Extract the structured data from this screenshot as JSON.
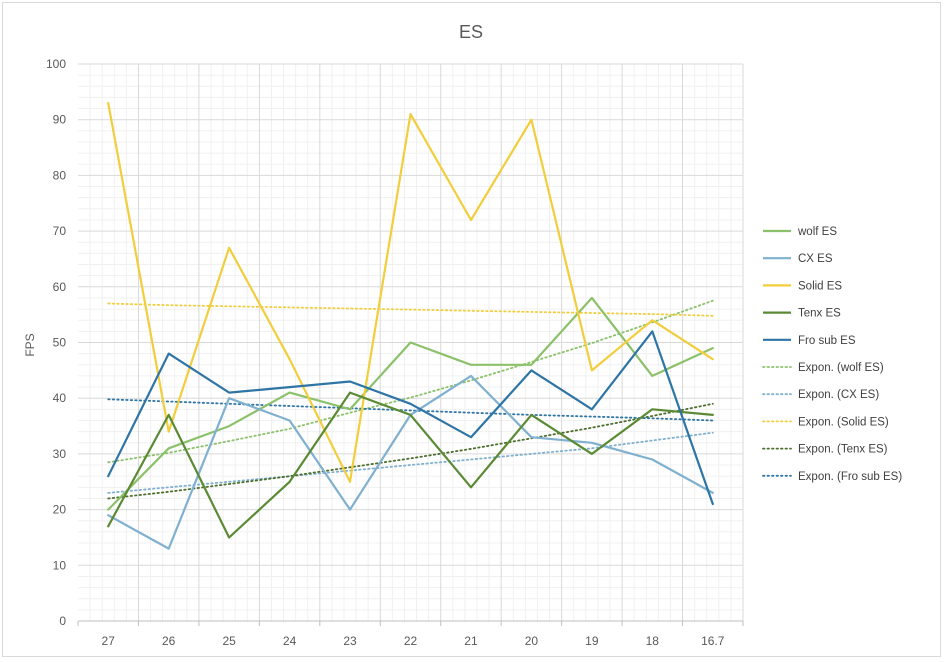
{
  "chart_data": {
    "type": "line",
    "title": "ES",
    "xlabel": "",
    "ylabel": "FPS",
    "ylim": [
      0,
      100
    ],
    "yticks": [
      0,
      10,
      20,
      30,
      40,
      50,
      60,
      70,
      80,
      90,
      100
    ],
    "grid": true,
    "legend_position": "right",
    "categories": [
      "27",
      "26",
      "25",
      "24",
      "23",
      "22",
      "21",
      "20",
      "19",
      "18",
      "16.7"
    ],
    "series": [
      {
        "name": "wolf ES",
        "color": "#8cc16b",
        "style": "solid",
        "values": [
          20,
          31,
          35,
          41,
          38,
          50,
          46,
          46,
          58,
          44,
          49
        ]
      },
      {
        "name": "CX ES",
        "color": "#7fb0cf",
        "style": "solid",
        "values": [
          19,
          13,
          40,
          36,
          20,
          37,
          44,
          33,
          32,
          29,
          23
        ]
      },
      {
        "name": "Solid ES",
        "color": "#f2cd3c",
        "style": "solid",
        "values": [
          93,
          34,
          67,
          47,
          25,
          91,
          72,
          90,
          45,
          54,
          47
        ]
      },
      {
        "name": "Tenx ES",
        "color": "#5b8a34",
        "style": "solid",
        "values": [
          17,
          37,
          15,
          25,
          41,
          37,
          24,
          37,
          30,
          38,
          37
        ]
      },
      {
        "name": "Fro sub ES",
        "color": "#2e75a6",
        "style": "solid",
        "values": [
          26,
          48,
          41,
          42,
          43,
          39,
          33,
          45,
          38,
          52,
          21
        ]
      },
      {
        "name": "Expon. (wolf ES)",
        "color": "#8cc16b",
        "style": "dotted",
        "values": [
          28.5,
          30.2,
          32.3,
          34.5,
          37.4,
          40.1,
          43.2,
          46.5,
          49.9,
          53.6,
          57.5
        ]
      },
      {
        "name": "Expon. (CX ES)",
        "color": "#7fb0cf",
        "style": "dotted",
        "values": [
          23,
          24,
          25,
          26,
          27,
          28,
          29,
          30,
          31,
          32.4,
          33.8
        ]
      },
      {
        "name": "Expon. (Solid ES)",
        "color": "#f2cd3c",
        "style": "dotted",
        "values": [
          57,
          56.7,
          56.5,
          56.3,
          56.1,
          55.9,
          55.7,
          55.5,
          55.3,
          55.1,
          54.8
        ]
      },
      {
        "name": "Expon. (Tenx ES)",
        "color": "#4d6e2c",
        "style": "dotted",
        "values": [
          22,
          23.2,
          24.6,
          26,
          27.6,
          29.2,
          30.9,
          32.8,
          34.7,
          36.8,
          39
        ]
      },
      {
        "name": "Expon. (Fro sub ES)",
        "color": "#2e75a6",
        "style": "dotted",
        "values": [
          39.8,
          39.4,
          39,
          38.6,
          38.2,
          37.8,
          37.4,
          37,
          36.7,
          36.4,
          36
        ]
      }
    ]
  }
}
